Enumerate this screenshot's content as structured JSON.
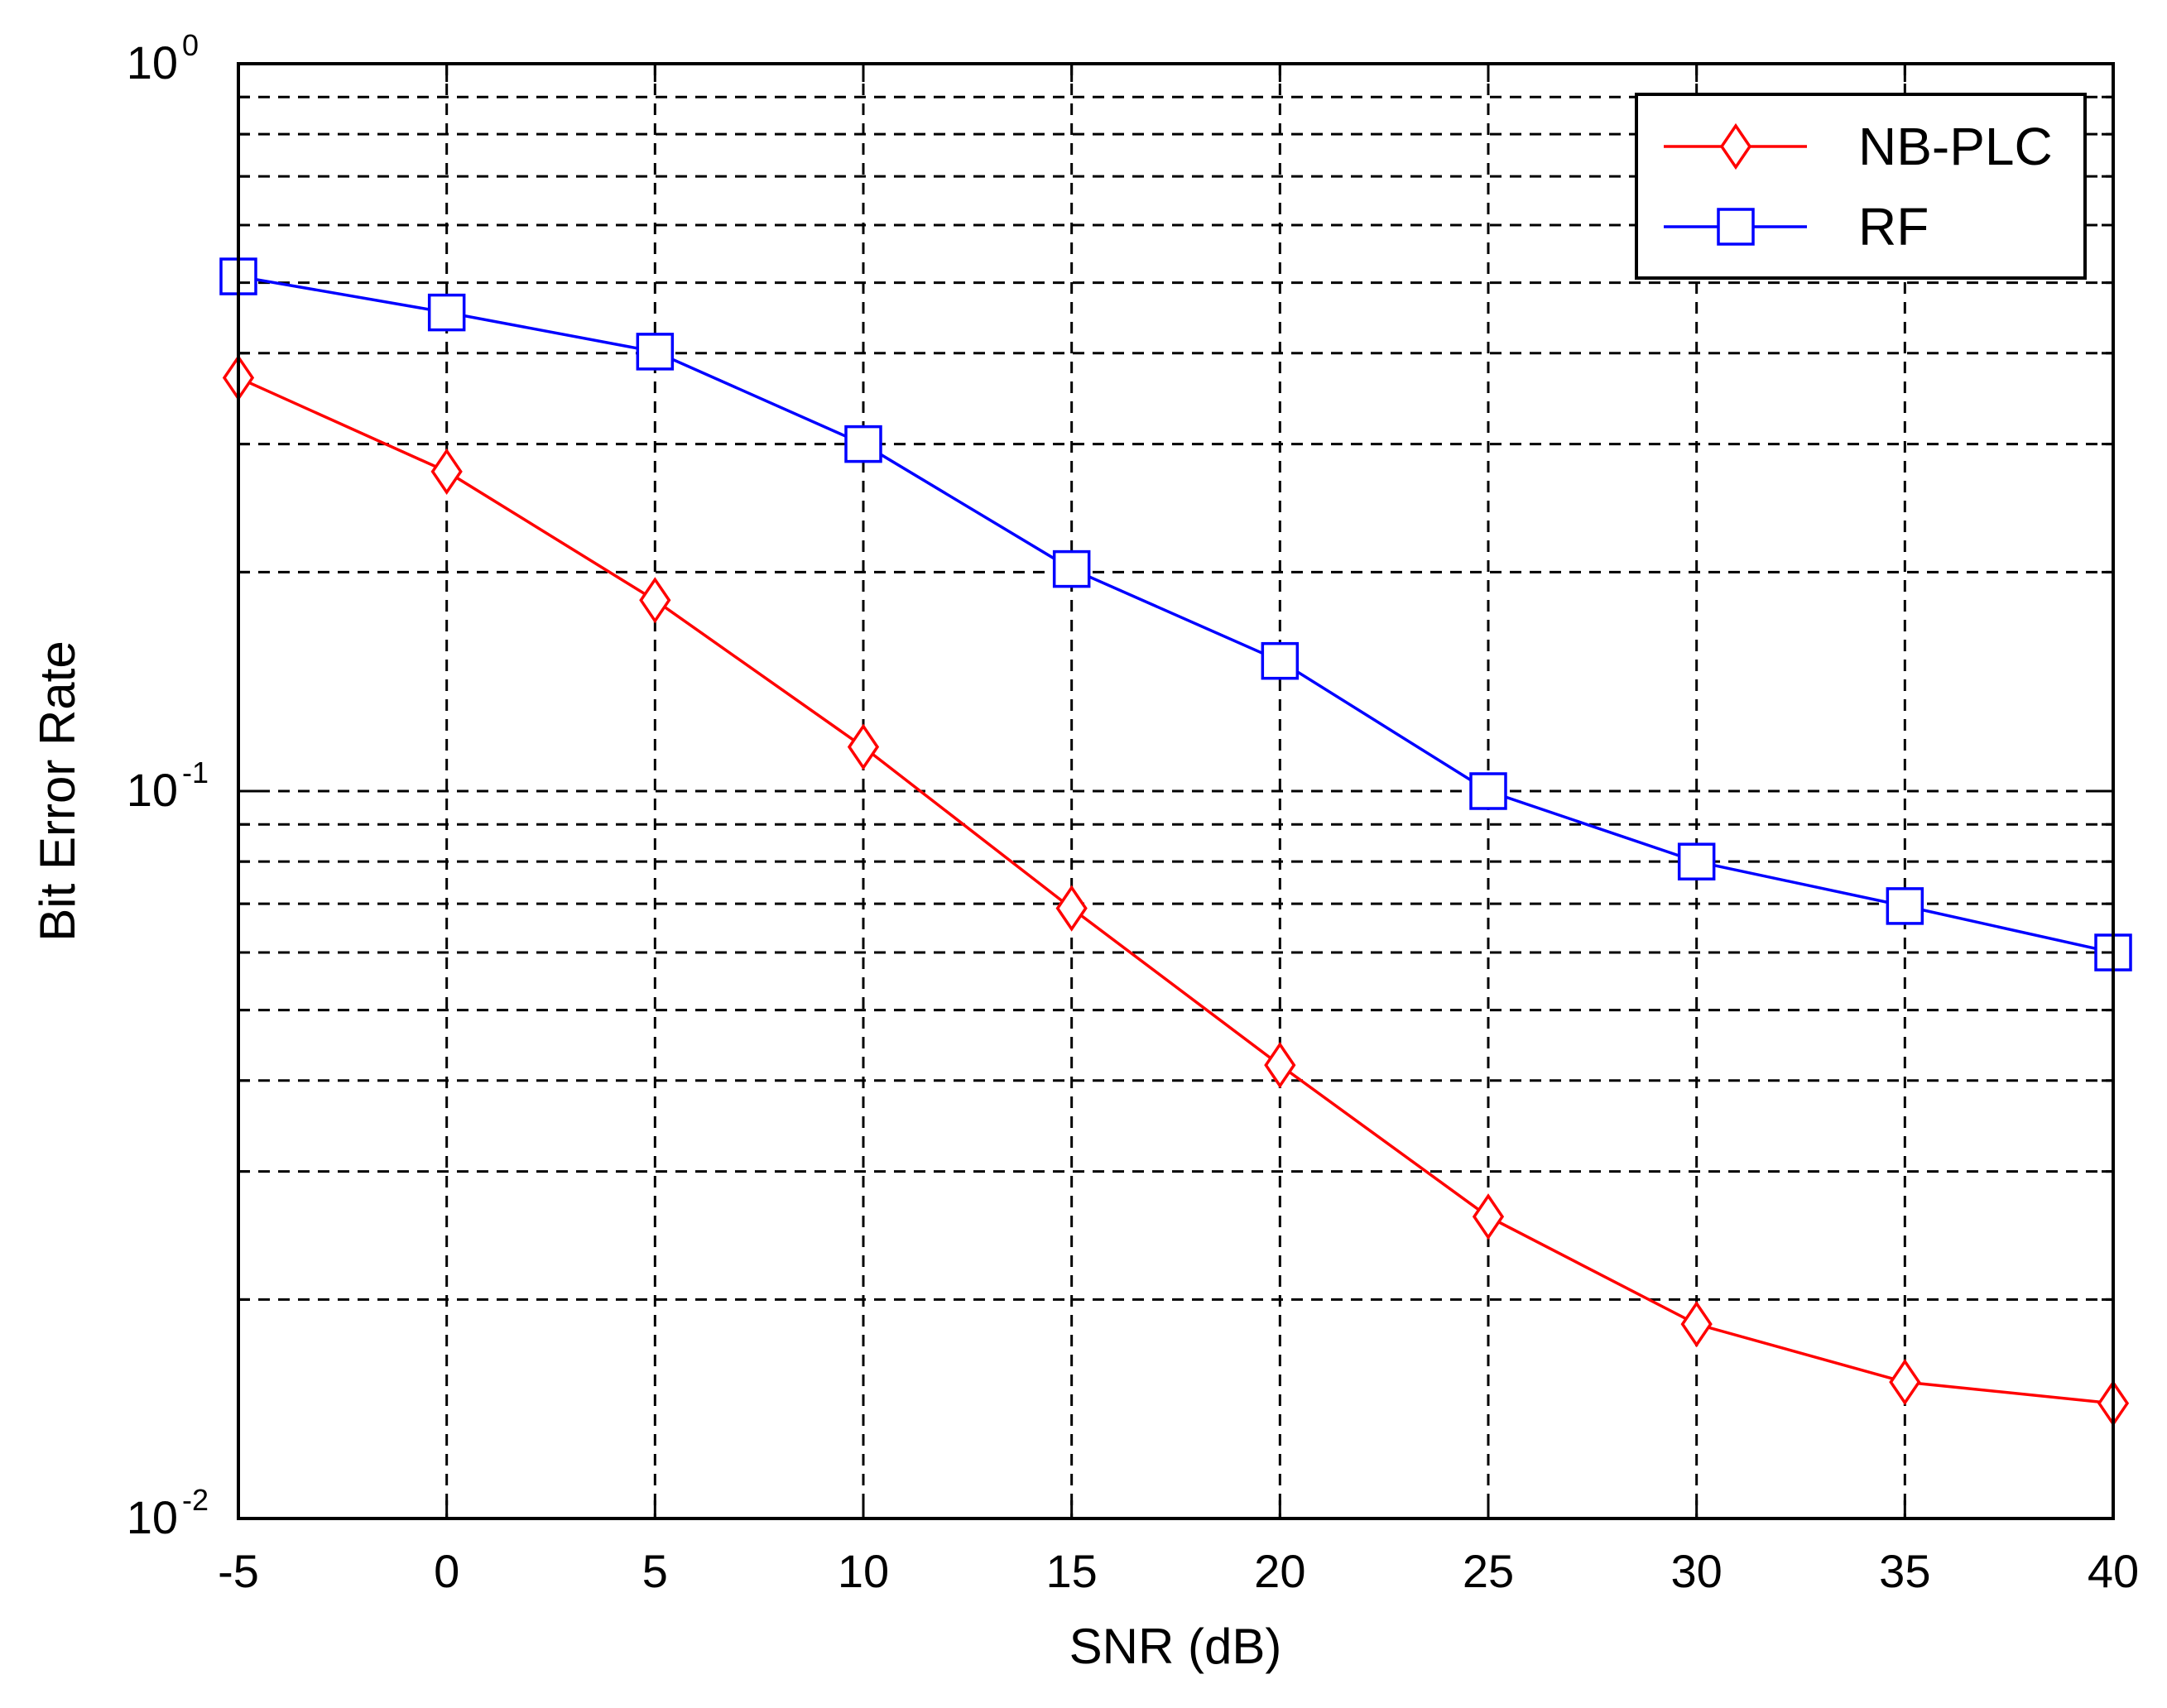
{
  "chart_data": {
    "type": "line",
    "title": "",
    "xlabel": "SNR (dB)",
    "ylabel": "Bit Error Rate",
    "x": [
      -5,
      0,
      5,
      10,
      15,
      20,
      25,
      30,
      35,
      40
    ],
    "xlim": [
      -5,
      40
    ],
    "xticks": [
      "-5",
      "0",
      "5",
      "10",
      "15",
      "20",
      "25",
      "30",
      "35",
      "40"
    ],
    "yscale": "log",
    "ylim": [
      0.01,
      1
    ],
    "yticks": [
      {
        "base": "10",
        "exp": "0"
      },
      {
        "base": "10",
        "exp": "-1"
      },
      {
        "base": "10",
        "exp": "-2"
      }
    ],
    "grid": true,
    "legend_position": "top-right",
    "series": [
      {
        "name": "NB-PLC",
        "color": "#ff0000",
        "marker": "diamond",
        "values": [
          0.37,
          0.275,
          0.183,
          0.115,
          0.069,
          0.042,
          0.026,
          0.0185,
          0.0154,
          0.0144
        ]
      },
      {
        "name": "RF",
        "color": "#0000ff",
        "marker": "square",
        "values": [
          0.51,
          0.455,
          0.402,
          0.3,
          0.202,
          0.151,
          0.1,
          0.08,
          0.0695,
          0.06
        ]
      }
    ]
  }
}
